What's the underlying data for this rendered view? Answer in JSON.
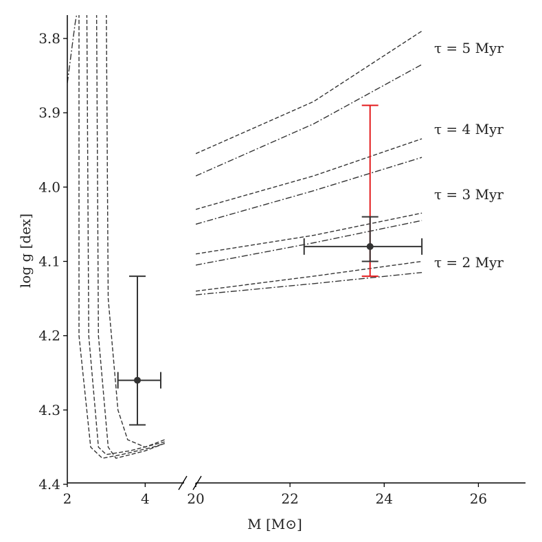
{
  "chart_data": {
    "type": "line",
    "xlabel": "M [M⊙]",
    "ylabel": "log g [dex]",
    "ylim": [
      4.4,
      3.75
    ],
    "y_inverted": true,
    "y_ticks": [
      "3.8",
      "3.9",
      "4.0",
      "4.1",
      "4.2",
      "4.3",
      "4.4"
    ],
    "x_broken_axis": true,
    "left_panel": {
      "xlim": [
        2,
        5
      ],
      "x_ticks": [
        "2",
        "4"
      ]
    },
    "right_panel": {
      "xlim": [
        20,
        27
      ],
      "x_ticks": [
        "20",
        "22",
        "24",
        "26"
      ]
    },
    "annotations": [
      {
        "text": "τ = 5 Myr",
        "y": 3.81
      },
      {
        "text": "τ = 4 Myr",
        "y": 3.905
      },
      {
        "text": "τ = 3 Myr",
        "y": 4.0
      },
      {
        "text": "τ = 2 Myr",
        "y": 4.09
      }
    ],
    "left_tracks": [
      {
        "style": "dash",
        "points": [
          [
            2.3,
            3.75
          ],
          [
            2.3,
            4.2
          ],
          [
            2.6,
            4.35
          ],
          [
            2.9,
            4.365
          ],
          [
            3.4,
            4.36
          ],
          [
            4.2,
            4.35
          ],
          [
            4.5,
            4.345
          ]
        ]
      },
      {
        "style": "dash",
        "points": [
          [
            2.5,
            3.75
          ],
          [
            2.55,
            4.2
          ],
          [
            2.8,
            4.35
          ],
          [
            3.0,
            4.36
          ],
          [
            3.6,
            4.355
          ],
          [
            4.5,
            4.343
          ]
        ]
      },
      {
        "style": "dash",
        "points": [
          [
            2.75,
            3.75
          ],
          [
            2.8,
            4.2
          ],
          [
            3.05,
            4.35
          ],
          [
            3.25,
            4.365
          ],
          [
            4.0,
            4.355
          ],
          [
            4.5,
            4.345
          ]
        ]
      },
      {
        "style": "dash",
        "points": [
          [
            3.0,
            3.75
          ],
          [
            3.05,
            4.15
          ],
          [
            3.3,
            4.3
          ],
          [
            3.55,
            4.34
          ],
          [
            4.0,
            4.35
          ],
          [
            4.5,
            4.34
          ]
        ]
      },
      {
        "style": "dashdot",
        "points": [
          [
            2.0,
            3.86
          ],
          [
            2.2,
            3.78
          ],
          [
            2.3,
            3.75
          ]
        ]
      }
    ],
    "right_tracks": [
      {
        "label": "τ = 5 Myr",
        "style": "dash",
        "points": [
          [
            20.0,
            3.955
          ],
          [
            22.5,
            3.885
          ],
          [
            24.8,
            3.79
          ]
        ]
      },
      {
        "label": "τ = 5 Myr",
        "style": "dashdot",
        "points": [
          [
            20.0,
            3.985
          ],
          [
            22.5,
            3.915
          ],
          [
            24.8,
            3.835
          ]
        ]
      },
      {
        "label": "τ = 4 Myr",
        "style": "dash",
        "points": [
          [
            20.0,
            4.03
          ],
          [
            22.5,
            3.985
          ],
          [
            24.8,
            3.935
          ]
        ]
      },
      {
        "label": "τ = 4 Myr",
        "style": "dashdot",
        "points": [
          [
            20.0,
            4.05
          ],
          [
            22.5,
            4.005
          ],
          [
            24.8,
            3.96
          ]
        ]
      },
      {
        "label": "τ = 3 Myr",
        "style": "dash",
        "points": [
          [
            20.0,
            4.09
          ],
          [
            22.5,
            4.065
          ],
          [
            24.8,
            4.035
          ]
        ]
      },
      {
        "label": "τ = 3 Myr",
        "style": "dashdot",
        "points": [
          [
            20.0,
            4.105
          ],
          [
            22.5,
            4.075
          ],
          [
            24.8,
            4.045
          ]
        ]
      },
      {
        "label": "τ = 2 Myr",
        "style": "dash",
        "points": [
          [
            20.0,
            4.14
          ],
          [
            22.5,
            4.12
          ],
          [
            24.8,
            4.1
          ]
        ]
      },
      {
        "label": "τ = 2 Myr",
        "style": "dashdot",
        "points": [
          [
            20.0,
            4.145
          ],
          [
            22.5,
            4.13
          ],
          [
            24.8,
            4.115
          ]
        ]
      }
    ],
    "points": [
      {
        "panel": "left",
        "x": 3.8,
        "y": 4.26,
        "x_err": [
          0.5,
          0.6
        ],
        "y_err": [
          0.14,
          0.06
        ],
        "color": "#333333"
      },
      {
        "panel": "right",
        "x": 23.7,
        "y": 4.08,
        "x_err": [
          1.4,
          1.1
        ],
        "y_err": [
          0.04,
          0.02
        ],
        "color": "#333333"
      }
    ],
    "extra_errorbars": [
      {
        "panel": "right",
        "x": 23.7,
        "y_low": 3.89,
        "y_high": 4.12,
        "color": "#e31a1c"
      }
    ]
  }
}
